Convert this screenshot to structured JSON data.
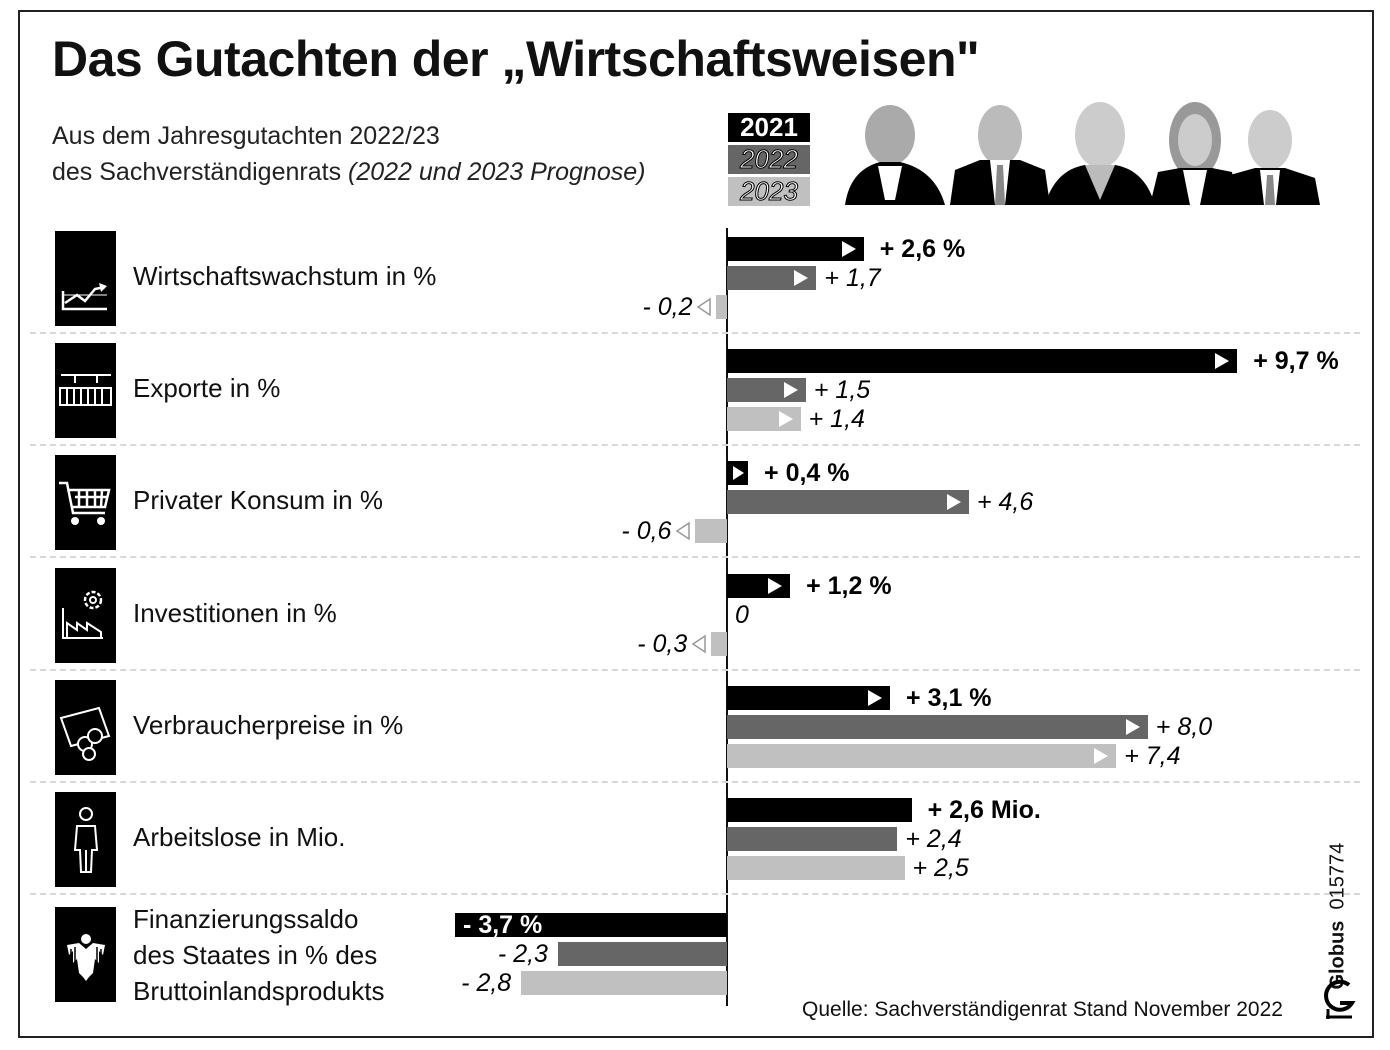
{
  "title": "Das Gutachten der „Wirtschaftsweisen\"",
  "subtitle_line1": "Aus dem Jahresgutachten 2022/23",
  "subtitle_line2": "des Sachverständigenrats",
  "subtitle_note": "(2022 und 2023 Prognose)",
  "legend": [
    "2021",
    "2022",
    "2023"
  ],
  "colors": {
    "2021": "#000000",
    "2022": "#666666",
    "2023": "#c0c0c0"
  },
  "source": "Quelle: Sachverständigenrat  Stand November 2022",
  "brand": "Globus",
  "graphic_id": "015774",
  "chart_data": {
    "type": "bar",
    "orientation": "horizontal",
    "series_names": [
      "2021",
      "2022",
      "2023"
    ],
    "categories": [
      {
        "label": "Wirtschaftswachstum in %",
        "icon": "growth-chart-icon",
        "values": [
          2.6,
          1.7,
          -0.2
        ],
        "value_labels": [
          "+ 2,6 %",
          "+ 1,7",
          "- 0,2"
        ]
      },
      {
        "label": "Exporte in %",
        "icon": "container-crane-icon",
        "values": [
          9.7,
          1.5,
          1.4
        ],
        "value_labels": [
          "+ 9,7 %",
          "+ 1,5",
          "+ 1,4"
        ]
      },
      {
        "label": "Privater Konsum in %",
        "icon": "shopping-cart-icon",
        "values": [
          0.4,
          4.6,
          -0.6
        ],
        "value_labels": [
          "+ 0,4 %",
          "+ 4,6",
          "- 0,6"
        ]
      },
      {
        "label": "Investitionen in %",
        "icon": "factory-gear-icon",
        "values": [
          1.2,
          0,
          -0.3
        ],
        "value_labels": [
          "+ 1,2 %",
          "0",
          "- 0,3"
        ]
      },
      {
        "label": "Verbraucherpreise in %",
        "icon": "money-coins-icon",
        "values": [
          3.1,
          8.0,
          7.4
        ],
        "value_labels": [
          "+ 3,1 %",
          "+ 8,0",
          "+ 7,4"
        ]
      },
      {
        "label": "Arbeitslose in Mio.",
        "icon": "person-icon",
        "values": [
          2.6,
          2.4,
          2.5
        ],
        "value_labels": [
          "+ 2,6 Mio.",
          "+ 2,4",
          "+ 2,5"
        ]
      },
      {
        "label_lines": [
          "Finanzierungssaldo",
          "des Staates  in % des",
          "Bruttoinlandsprodukts"
        ],
        "icon": "federal-eagle-icon",
        "values": [
          -3.7,
          -2.3,
          -2.8
        ],
        "value_labels": [
          "- 3,7 %",
          "- 2,3",
          "- 2,8"
        ]
      }
    ]
  }
}
